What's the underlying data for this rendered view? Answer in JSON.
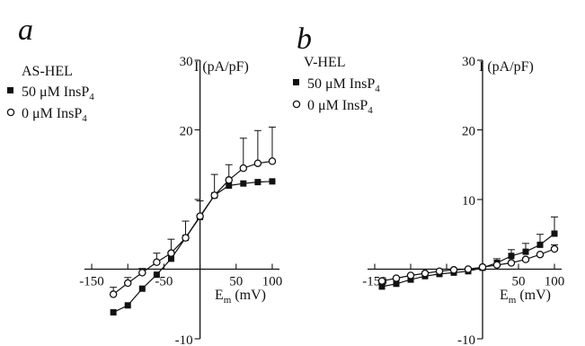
{
  "chart_data": [
    {
      "type": "line",
      "panel_letter": "a",
      "cell_line": "AS-HEL",
      "ylabel": "I (pA/pF)",
      "xlabel_main": "E",
      "xlabel_sub": "m",
      "xlabel_unit": " (mV)",
      "xlim": [
        -160,
        110
      ],
      "ylim": [
        -10,
        30
      ],
      "x_ticks": [
        -150,
        -50,
        50,
        100
      ],
      "x_tick_labels": [
        "-150",
        "-50",
        "50",
        "100"
      ],
      "x_minor_ticks": [
        -100,
        0
      ],
      "y_ticks": [
        -10,
        20,
        30
      ],
      "y_tick_labels": [
        "-10",
        "20",
        "30"
      ],
      "y_minor_ticks": [
        0,
        10
      ],
      "series": [
        {
          "name_pre": "50 μM InsP",
          "name_sub": "4",
          "marker": "filled-square",
          "x": [
            -120,
            -100,
            -80,
            -60,
            -40,
            -20,
            0,
            20,
            40,
            60,
            80,
            100
          ],
          "y": [
            -6.2,
            -5.2,
            -2.8,
            -0.8,
            1.5,
            4.5,
            7.5,
            10.6,
            12.0,
            12.3,
            12.5,
            12.6
          ],
          "err": [
            0,
            0,
            0,
            0,
            0,
            0,
            0,
            0,
            0,
            0,
            0,
            0
          ]
        },
        {
          "name_pre": "0 μM InsP",
          "name_sub": "4",
          "marker": "open-circle",
          "x": [
            -120,
            -100,
            -80,
            -60,
            -40,
            -20,
            0,
            20,
            40,
            60,
            80,
            100
          ],
          "y": [
            -3.6,
            -2.0,
            -0.5,
            1.0,
            2.3,
            4.5,
            7.6,
            10.6,
            12.8,
            14.5,
            15.2,
            15.5
          ],
          "err": [
            1.0,
            0.8,
            0.6,
            1.3,
            2.0,
            2.4,
            2.2,
            3.0,
            2.2,
            4.3,
            4.7,
            4.9
          ]
        }
      ]
    },
    {
      "type": "line",
      "panel_letter": "b",
      "cell_line": "V-HEL",
      "ylabel": "I (pA/pF)",
      "xlabel_main": "E",
      "xlabel_sub": "m",
      "xlabel_unit": " (mV)",
      "xlim": [
        -160,
        110
      ],
      "ylim": [
        -10,
        30
      ],
      "x_ticks": [
        -150,
        50,
        100
      ],
      "x_tick_labels": [
        "-150",
        "50",
        "100"
      ],
      "x_minor_ticks": [
        -100,
        -50,
        0
      ],
      "y_ticks": [
        -10,
        10,
        20,
        30
      ],
      "y_tick_labels": [
        "-10",
        "10",
        "20",
        "30"
      ],
      "y_minor_ticks": [
        0
      ],
      "series": [
        {
          "name_pre": "50 μM InsP",
          "name_sub": "4",
          "marker": "filled-square",
          "x": [
            -140,
            -120,
            -100,
            -80,
            -60,
            -40,
            -20,
            0,
            20,
            40,
            60,
            80,
            100
          ],
          "y": [
            -2.5,
            -2.1,
            -1.5,
            -1.0,
            -0.7,
            -0.5,
            -0.3,
            0.2,
            0.9,
            1.9,
            2.5,
            3.5,
            5.1
          ],
          "err": [
            0,
            0,
            0,
            0,
            0,
            0,
            0,
            0,
            0.6,
            0.9,
            1.2,
            1.5,
            2.4
          ]
        },
        {
          "name_pre": "0 μM InsP",
          "name_sub": "4",
          "marker": "open-circle",
          "x": [
            -140,
            -120,
            -100,
            -80,
            -60,
            -40,
            -20,
            0,
            20,
            40,
            60,
            80,
            100
          ],
          "y": [
            -1.7,
            -1.3,
            -0.9,
            -0.6,
            -0.3,
            -0.1,
            0.0,
            0.3,
            0.6,
            0.9,
            1.4,
            2.1,
            2.9
          ],
          "err": [
            0,
            0,
            0,
            0,
            0,
            0,
            0,
            0,
            0,
            0,
            0,
            0,
            0.6
          ]
        }
      ]
    }
  ]
}
